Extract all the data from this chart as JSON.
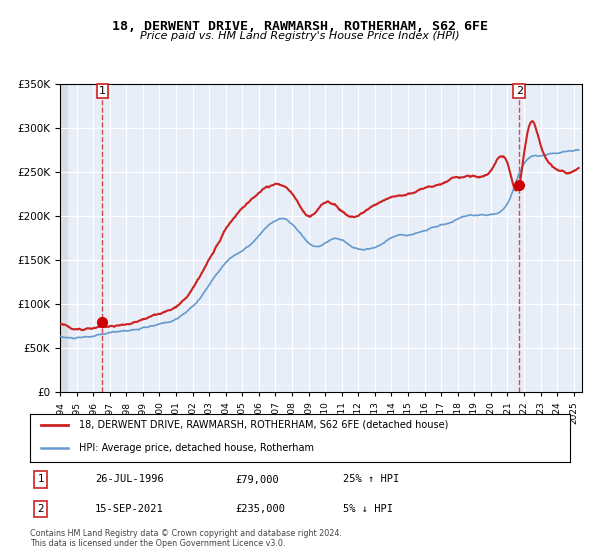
{
  "title": "18, DERWENT DRIVE, RAWMARSH, ROTHERHAM, S62 6FE",
  "subtitle": "Price paid vs. HM Land Registry's House Price Index (HPI)",
  "legend_line1": "18, DERWENT DRIVE, RAWMARSH, ROTHERHAM, S62 6FE (detached house)",
  "legend_line2": "HPI: Average price, detached house, Rotherham",
  "footnote1": "Contains HM Land Registry data © Crown copyright and database right 2024.",
  "footnote2": "This data is licensed under the Open Government Licence v3.0.",
  "table_rows": [
    {
      "num": "1",
      "date": "26-JUL-1996",
      "price": "£79,000",
      "hpi": "25% ↑ HPI"
    },
    {
      "num": "2",
      "date": "15-SEP-2021",
      "price": "£235,000",
      "hpi": "5% ↓ HPI"
    }
  ],
  "hpi_color": "#6699cc",
  "price_color": "#cc2222",
  "marker_color": "#cc0000",
  "dashed_line_color": "#cc2222",
  "background_plot": "#e8eef8",
  "background_figure": "#ffffff",
  "grid_color": "#ffffff",
  "hatch_color": "#cccccc",
  "ylim": [
    0,
    350000
  ],
  "yticks": [
    0,
    50000,
    100000,
    150000,
    200000,
    250000,
    300000,
    350000
  ],
  "xlim_start": 1994.0,
  "xlim_end": 2025.5,
  "sale1_x": 1996.56,
  "sale1_y": 79000,
  "sale2_x": 2021.71,
  "sale2_y": 235000
}
